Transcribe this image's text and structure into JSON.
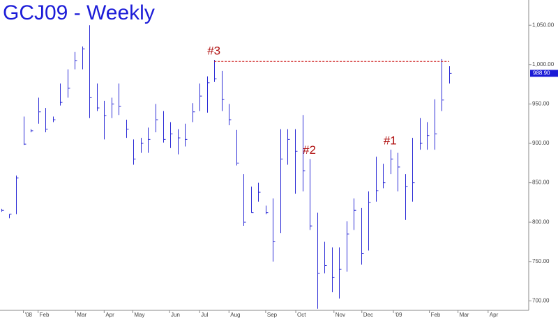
{
  "chart_data": {
    "type": "ohlc",
    "title": "GCJ09 - Weekly",
    "color": "#2b2bd6",
    "high": [
      817,
      810,
      859,
      934,
      918,
      958,
      945,
      934,
      976,
      994,
      1016,
      1023,
      1050,
      976,
      954,
      958,
      976,
      930,
      905,
      907,
      920,
      950,
      941,
      927,
      918,
      925,
      951,
      976,
      985,
      1006,
      992,
      950,
      917,
      861,
      845,
      850,
      821,
      830,
      918,
      918,
      918,
      936,
      880,
      812,
      775,
      768,
      768,
      801,
      830,
      818,
      839,
      883,
      874,
      892,
      888,
      861,
      907,
      932,
      927,
      956,
      1007,
      998
    ],
    "low": [
      813,
      805,
      810,
      898,
      914,
      925,
      914,
      927,
      948,
      958,
      994,
      994,
      932,
      941,
      905,
      932,
      936,
      907,
      873,
      888,
      888,
      914,
      901,
      894,
      886,
      896,
      927,
      941,
      939,
      978,
      941,
      923,
      872,
      795,
      812,
      826,
      810,
      750,
      786,
      873,
      836,
      839,
      790,
      690,
      735,
      711,
      703,
      737,
      790,
      746,
      764,
      826,
      843,
      861,
      839,
      803,
      826,
      892,
      892,
      892,
      941,
      976
    ],
    "close": [
      815,
      810,
      856,
      899,
      916,
      940,
      918,
      930,
      952,
      970,
      1005,
      1020,
      958,
      945,
      935,
      950,
      947,
      918,
      880,
      900,
      905,
      930,
      905,
      912,
      907,
      905,
      940,
      960,
      977,
      982,
      956,
      930,
      875,
      800,
      812,
      838,
      812,
      775,
      880,
      905,
      890,
      865,
      795,
      735,
      745,
      730,
      740,
      785,
      815,
      760,
      825,
      840,
      850,
      880,
      870,
      845,
      850,
      900,
      910,
      912,
      955,
      988.9
    ],
    "xlim": [
      -0.19,
      71.83
    ],
    "xticks": [
      {
        "value": 3.0,
        "label": "'08"
      },
      {
        "value": 5.0,
        "label": "Feb"
      },
      {
        "value": 10.1,
        "label": "Mar"
      },
      {
        "value": 14.0,
        "label": "Apr"
      },
      {
        "value": 17.9,
        "label": "May"
      },
      {
        "value": 22.9,
        "label": "Jun"
      },
      {
        "value": 27.0,
        "label": "Jul"
      },
      {
        "value": 31.0,
        "label": "Aug"
      },
      {
        "value": 36.0,
        "label": "Sep"
      },
      {
        "value": 40.1,
        "label": "Oct"
      },
      {
        "value": 45.3,
        "label": "Nov"
      },
      {
        "value": 49.1,
        "label": "Dec"
      },
      {
        "value": 53.4,
        "label": "'09"
      },
      {
        "value": 58.3,
        "label": "Feb"
      },
      {
        "value": 62.2,
        "label": "Mar"
      },
      {
        "value": 66.3,
        "label": "Apr"
      }
    ],
    "ylim": [
      688,
      1082
    ],
    "yticks": [
      {
        "value": 700,
        "label": "700.00"
      },
      {
        "value": 750,
        "label": "750.00"
      },
      {
        "value": 800,
        "label": "800.00"
      },
      {
        "value": 850,
        "label": "850.00"
      },
      {
        "value": 900,
        "label": "900.00"
      },
      {
        "value": 950,
        "label": "950.00"
      },
      {
        "value": 1000,
        "label": "1,000.00"
      },
      {
        "value": 1050,
        "label": "1,050.00"
      }
    ],
    "last_price": {
      "value": 988.9,
      "label": "988.90"
    },
    "resistance": {
      "y": 1004,
      "x": [
        29,
        61
      ],
      "color": "#cc1111"
    },
    "annotations": [
      {
        "text": "#3",
        "bar": 29
      },
      {
        "text": "#2",
        "bar": 42
      },
      {
        "text": "#1",
        "bar": 53
      }
    ],
    "annotation_color": "#b01010"
  }
}
